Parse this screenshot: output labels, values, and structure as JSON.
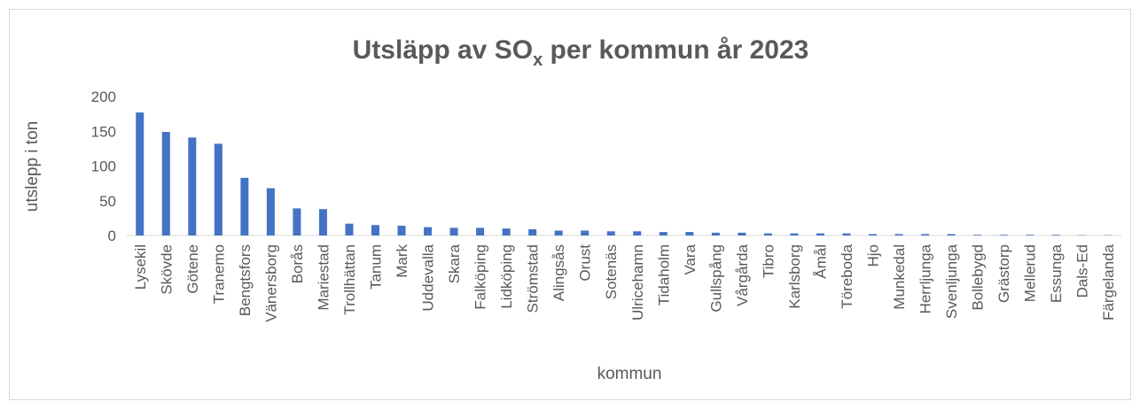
{
  "chart_data": {
    "type": "bar",
    "title": [
      "Utsläpp av SO",
      "x",
      " per kommun år 2023"
    ],
    "x_label": "kommun",
    "y_label": "utslepp i ton",
    "categories": [
      "Lysekil",
      "Skövde",
      "Götene",
      "Tranemo",
      "Bengtsfors",
      "Vänersborg",
      "Borås",
      "Mariestad",
      "Trollhättan",
      "Tanum",
      "Mark",
      "Uddevalla",
      "Skara",
      "Falköping",
      "Lidköping",
      "Strömstad",
      "Alingsås",
      "Orust",
      "Sotenäs",
      "Ulricehamn",
      "Tidaholm",
      "Vara",
      "Gullspång",
      "Vårgårda",
      "Tibro",
      "Karlsborg",
      "Åmål",
      "Töreboda",
      "Hjo",
      "Munkedal",
      "Herrljunga",
      "Svenljunga",
      "Bollebygd",
      "Grästorp",
      "Mellerud",
      "Essunga",
      "Dals-Ed",
      "Färgelanda"
    ],
    "values": [
      177,
      149,
      141,
      132,
      83,
      68,
      39,
      38,
      17,
      15,
      14,
      12,
      11,
      11,
      10,
      9,
      7,
      7,
      6,
      6,
      5,
      5,
      4,
      4,
      3,
      3,
      3,
      3,
      2,
      2,
      2,
      2,
      1,
      1,
      1,
      1,
      0.5,
      0.5
    ],
    "color": "#4472c4",
    "ylim": [
      0,
      200
    ],
    "yticks": [
      0,
      50,
      100,
      150,
      200
    ],
    "grid": false
  }
}
